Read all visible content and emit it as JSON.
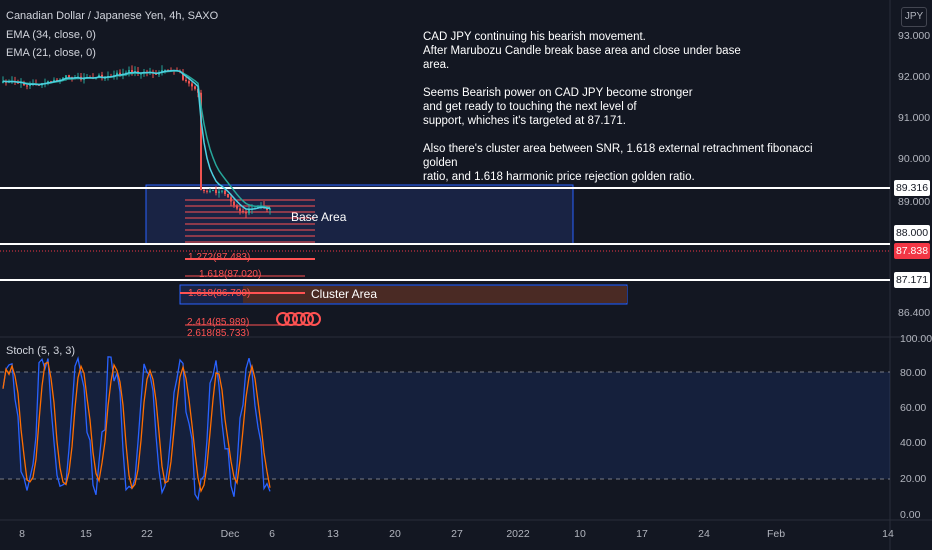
{
  "header": {
    "title": "Canadian Dollar / Japanese Yen, 4h, SAXO",
    "indicators": [
      "EMA (34, close, 0)",
      "EMA (21, close, 0)"
    ]
  },
  "currency_button": "JPY",
  "annotation": {
    "lines": [
      "CAD JPY continuing his bearish movement.",
      "After Marubozu Candle break base area and close under base",
      "area.",
      "",
      "Seems Bearish power on CAD JPY become stronger",
      "and get ready to touching the next level of",
      "support, whiches it's targeted at 87.171.",
      "",
      "Also there's cluster area between SNR, 1.618 external retrachment fibonacci golden",
      "ratio, and 1.618 harmonic price rejection golden ratio."
    ]
  },
  "zones": {
    "base_area_label": "Base Area",
    "cluster_area_label": "Cluster Area"
  },
  "fib_labels": {
    "f1272": "1.272(87.483)",
    "f1618a": "1.618(87.020)",
    "f1618b": "1.618(86.700)",
    "f2414": "2.414(85.989)",
    "f2618": "2.618(85.733)"
  },
  "price_axis": {
    "ticks": [
      "93.000",
      "92.000",
      "91.000",
      "90.000",
      "89.000",
      "86.400"
    ],
    "tags": {
      "level_upper": "89.316",
      "level_mid": "88.000",
      "current_price": "87.838",
      "target": "87.171"
    },
    "colors": {
      "current_price": "#f23645",
      "level": "#ffffff"
    }
  },
  "stoch": {
    "label": "Stoch (5, 3, 3)",
    "ticks": [
      "100.00",
      "80.00",
      "60.00",
      "40.00",
      "20.00",
      "0.00"
    ]
  },
  "time_axis": {
    "ticks": [
      "8",
      "15",
      "22",
      "Dec",
      "6",
      "13",
      "20",
      "27",
      "2022",
      "10",
      "17",
      "24",
      "Feb",
      "14"
    ]
  },
  "colors": {
    "background": "#131722",
    "ema34": "#26a69a",
    "ema21": "#4dd0e1",
    "bull": "#26a69a",
    "bear": "#ef5350",
    "stoch_k": "#2962ff",
    "stoch_d": "#ff6d00",
    "fib": "#ff5252"
  }
}
